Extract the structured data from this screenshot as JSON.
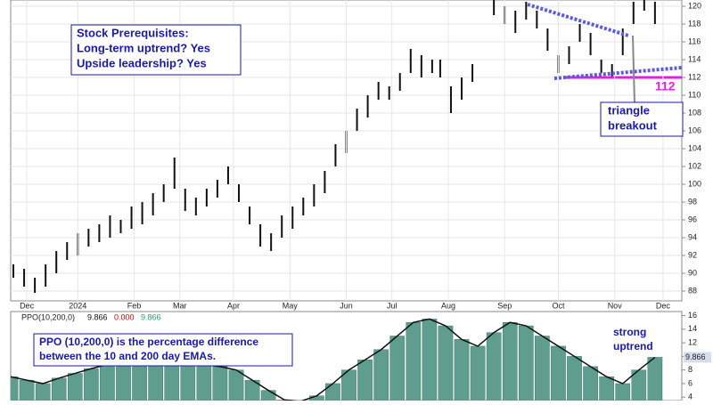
{
  "chart_data": [
    {
      "type": "ohlc-range",
      "color": "#111111",
      "x": [
        1,
        5,
        9,
        13,
        17,
        21,
        25,
        29,
        33,
        37,
        41,
        45,
        49,
        53,
        57,
        61,
        65,
        69,
        73,
        77,
        81,
        85,
        89,
        93,
        97,
        101,
        105,
        109,
        113,
        117,
        121,
        125,
        129,
        133,
        137,
        141,
        145,
        149,
        153,
        157,
        160,
        164,
        168,
        172,
        180,
        184,
        188,
        192,
        196,
        200,
        204,
        208,
        212,
        216,
        220,
        224,
        228,
        232,
        236,
        240
      ],
      "series": [
        {
          "name": "High",
          "values": [
            91,
            90.5,
            89.5,
            91,
            92.5,
            93.5,
            94.5,
            95,
            95.5,
            96.5,
            96,
            97.5,
            98,
            99,
            100,
            103,
            99.5,
            98.5,
            99.5,
            100.5,
            102,
            100,
            97.5,
            95.5,
            94.5,
            96.5,
            97.5,
            98.5,
            100,
            101.5,
            104.5,
            106,
            108.5,
            110,
            111.5,
            111,
            112.5,
            115.2,
            114.5,
            114,
            114,
            111,
            112,
            113.5,
            121,
            120,
            119.5,
            120.5,
            119.5,
            117.5,
            114.5,
            115.5,
            118,
            117,
            114,
            113.5,
            117.5,
            120.5,
            121.5,
            120.5
          ]
        },
        {
          "name": "Low",
          "values": [
            89.5,
            88.5,
            87.8,
            88.5,
            90,
            91.5,
            92,
            93,
            93.5,
            94,
            94.5,
            95,
            95.5,
            96.5,
            98,
            99.5,
            97,
            96.5,
            97.5,
            98.5,
            100,
            98,
            95.5,
            93,
            92.5,
            94,
            95,
            96.5,
            97.5,
            99,
            102,
            103.5,
            106,
            107.5,
            109.5,
            109.5,
            110.5,
            112.5,
            112,
            112.5,
            112,
            108,
            109.5,
            111.5,
            119,
            118,
            117,
            118.5,
            117.5,
            115,
            112.5,
            113.5,
            116,
            114.5,
            112.5,
            112,
            114.5,
            118,
            119.5,
            118
          ]
        }
      ],
      "xlim": [
        0,
        250
      ],
      "xticks": [
        {
          "value": 6,
          "label": "Dec"
        },
        {
          "value": 25,
          "label": "2024"
        },
        {
          "value": 46,
          "label": "Feb"
        },
        {
          "value": 63,
          "label": "Mar"
        },
        {
          "value": 83,
          "label": "Apr"
        },
        {
          "value": 104,
          "label": "May"
        },
        {
          "value": 125,
          "label": "Jun"
        },
        {
          "value": 142,
          "label": "Jul"
        },
        {
          "value": 163,
          "label": "Aug"
        },
        {
          "value": 184,
          "label": "Sep"
        },
        {
          "value": 204,
          "label": "Oct"
        },
        {
          "value": 225,
          "label": "Nov"
        },
        {
          "value": 243,
          "label": "Dec"
        }
      ],
      "ylim": [
        86.9,
        120.7
      ],
      "yticks": [
        88,
        90,
        92,
        94,
        96,
        98,
        100,
        102,
        104,
        106,
        108,
        110,
        112,
        114,
        116,
        118,
        120
      ],
      "grid": true,
      "hline": {
        "value": 112,
        "color": "#e020e0"
      },
      "annotations": {
        "box": [
          "Stock Prerequisites:",
          "Long-term uptrend? Yes",
          "Upside leadership? Yes"
        ],
        "breakout": [
          "triangle",
          "breakout"
        ]
      }
    },
    {
      "type": "histogram-line",
      "color": "#5f9e8f",
      "line_color": "#111111",
      "legend": {
        "name": "PPO(10,200,0)",
        "values": [
          "9.866",
          "0.000",
          "9.866"
        ],
        "colors": [
          "#111111",
          "#d00000",
          "#2a9a6a"
        ]
      },
      "last_label": "9.866",
      "x": [
        0,
        6,
        12,
        18,
        24,
        30,
        36,
        42,
        48,
        54,
        60,
        66,
        72,
        78,
        84,
        90,
        96,
        102,
        108,
        114,
        120,
        126,
        132,
        138,
        144,
        150,
        156,
        162,
        168,
        174,
        180,
        186,
        192,
        198,
        204,
        210,
        216,
        222,
        228,
        234,
        240
      ],
      "values": [
        7,
        6.5,
        6,
        6.8,
        7.5,
        8.2,
        8.8,
        9.2,
        9.5,
        9.6,
        9.5,
        9.2,
        8.8,
        8.5,
        8,
        6.5,
        5,
        3.6,
        3.4,
        4.2,
        6,
        8,
        9.5,
        11,
        13,
        15,
        15.5,
        14.5,
        12.5,
        11.5,
        13.5,
        15,
        14.5,
        13,
        11.5,
        10,
        8.5,
        7,
        6,
        8,
        9.866
      ],
      "xlim": [
        0,
        250
      ],
      "ylim": [
        3.5,
        16.6
      ],
      "yticks": [
        4,
        6,
        8,
        10,
        12,
        14,
        16
      ],
      "annotations": {
        "box": [
          "PPO (10,200,0) is the percentage difference",
          "between the 10 and 200 day EMAs."
        ],
        "trend": [
          "strong",
          "uptrend"
        ]
      }
    }
  ]
}
